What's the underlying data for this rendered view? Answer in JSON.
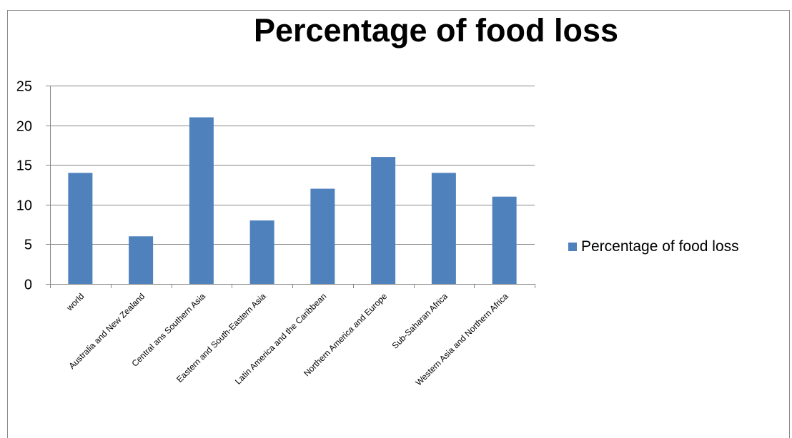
{
  "chart_data": {
    "type": "bar",
    "title": "Percentage of food loss",
    "xlabel": "",
    "ylabel": "",
    "categories": [
      "world",
      "Australia and New Zealand",
      "Central ans Southern Asia",
      "Eastern and South-Eastern Asia",
      "Latin America and the Caribbean",
      "Northern America and Europe",
      "Sub-Saharan Africa",
      "Western Asia and Northern Africa"
    ],
    "series": [
      {
        "name": "Percentage of food loss",
        "values": [
          14,
          6,
          21,
          8,
          12,
          16,
          14,
          11
        ],
        "color": "#4f81bd"
      }
    ],
    "ylim": [
      0,
      25
    ],
    "yticks": [
      "0",
      "5",
      "10",
      "15",
      "20",
      "25"
    ],
    "grid": true,
    "legend_position": "right"
  },
  "colors": {
    "bar": "#4f81bd",
    "gridline": "#868686",
    "axis": "#868686"
  }
}
